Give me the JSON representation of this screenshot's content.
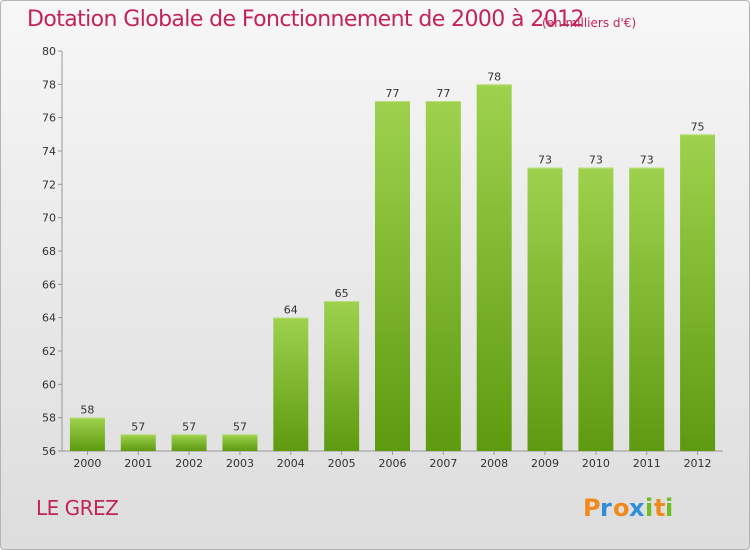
{
  "chart_data": {
    "type": "bar",
    "title": "Dotation Globale de Fonctionnement de 2000 à 2012",
    "subtitle": "(en milliers d'€)",
    "categories": [
      "2000",
      "2001",
      "2002",
      "2003",
      "2004",
      "2005",
      "2006",
      "2007",
      "2008",
      "2009",
      "2010",
      "2011",
      "2012"
    ],
    "values": [
      58,
      57,
      57,
      57,
      64,
      65,
      77,
      77,
      78,
      73,
      73,
      73,
      75
    ],
    "ylim": [
      56,
      80
    ],
    "yticks": [
      56,
      58,
      60,
      62,
      64,
      66,
      68,
      70,
      72,
      74,
      76,
      78,
      80
    ],
    "grid": false,
    "colors": {
      "bar_top": "#9ed24e",
      "bar_bottom": "#5e9a10",
      "bar_edge": "#b9e07a",
      "title": "#c2245a"
    }
  },
  "footer": {
    "town": "LE GREZ",
    "logo_letters": [
      {
        "char": "P",
        "color": "#f08a1c"
      },
      {
        "char": "r",
        "color": "#2f8fd8"
      },
      {
        "char": "o",
        "color": "#f08a1c"
      },
      {
        "char": "x",
        "color": "#2f8fd8"
      },
      {
        "char": "i",
        "color": "#6cbf1e"
      },
      {
        "char": "t",
        "color": "#f08a1c"
      },
      {
        "char": "i",
        "color": "#6cbf1e"
      }
    ]
  }
}
